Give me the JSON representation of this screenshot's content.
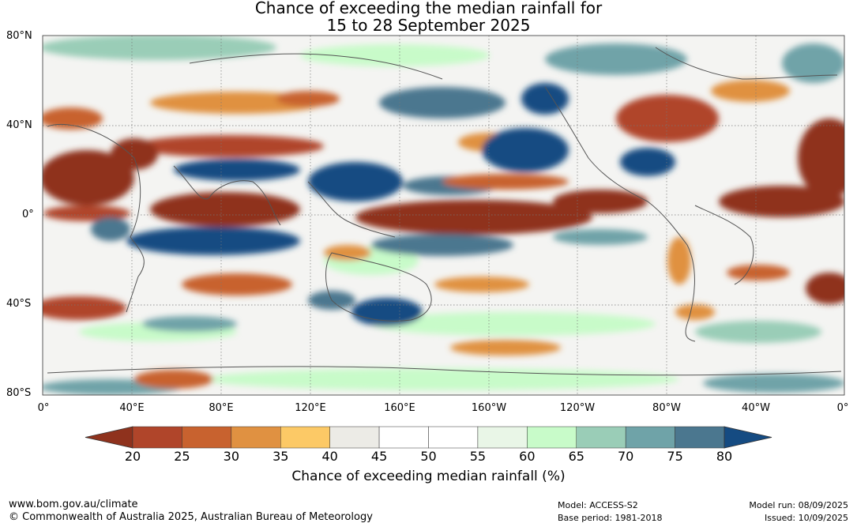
{
  "title_line1": "Chance of exceeding the median rainfall for",
  "title_line2": "15 to 28 September 2025",
  "lat_labels": [
    "80°N",
    "40°N",
    "0°",
    "40°S",
    "80°S"
  ],
  "lon_labels": [
    "0°",
    "40°E",
    "80°E",
    "120°E",
    "160°E",
    "160°W",
    "120°W",
    "80°W",
    "40°W",
    "0°"
  ],
  "colorbar": {
    "title": "Chance of exceeding median rainfall (%)",
    "ticks": [
      "20",
      "25",
      "30",
      "35",
      "40",
      "45",
      "50",
      "55",
      "60",
      "65",
      "70",
      "75",
      "80"
    ],
    "colors": [
      "#8f321d",
      "#b0452a",
      "#c8622f",
      "#e09141",
      "#fcc966",
      "#ecebe6",
      "#ffffff",
      "#ffffff",
      "#e9f6e7",
      "#c8fbc9",
      "#9acdb7",
      "#6fa3a8",
      "#4b778f",
      "#154b82"
    ],
    "under_color": "#8f321d",
    "over_color": "#154b82"
  },
  "footer": {
    "url": "www.bom.gov.au/climate",
    "copyright": "© Commonwealth of Australia 2025, Australian Bureau of Meteorology",
    "model": "Model: ACCESS-S2",
    "base_period": "Base period: 1981-2018",
    "model_run": "Model run: 08/09/2025",
    "issued": "Issued: 10/09/2025"
  }
}
